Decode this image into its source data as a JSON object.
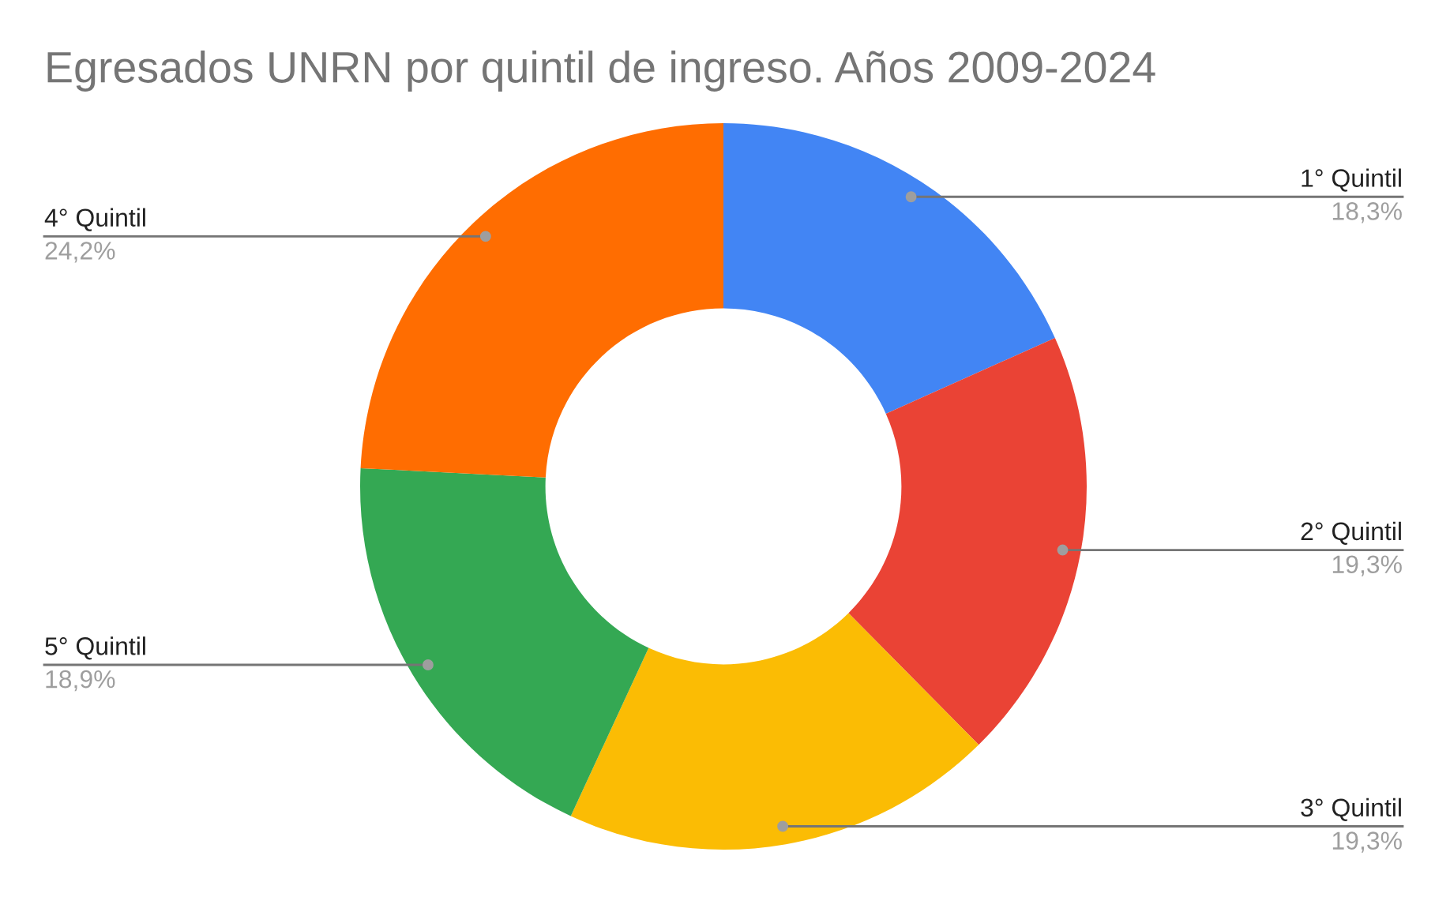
{
  "chart_data": {
    "type": "donut",
    "title": "Egresados UNRN por quintil de ingreso. Años 2009-2024",
    "categories": [
      "1° Quintil",
      "2° Quintil",
      "3° Quintil",
      "5° Quintil",
      "4° Quintil"
    ],
    "values": [
      18.3,
      19.3,
      19.3,
      18.9,
      24.2
    ],
    "value_labels": [
      "18,3%",
      "19,3%",
      "19,3%",
      "18,9%",
      "24,2%"
    ],
    "colors": [
      "#4285f4",
      "#ea4335",
      "#fbbc04",
      "#34a853",
      "#ff6d01"
    ],
    "legend": false
  }
}
